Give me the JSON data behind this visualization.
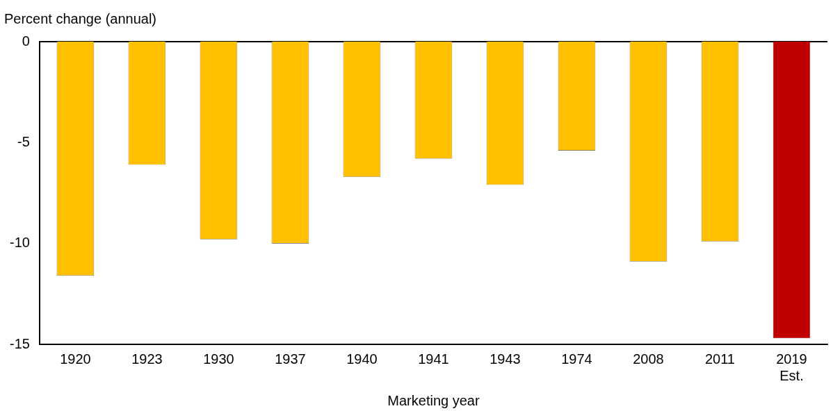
{
  "chart_data": {
    "type": "bar",
    "ylabel": "Percent change (annual)",
    "xlabel": "Marketing year",
    "categories": [
      "1920",
      "1923",
      "1930",
      "1937",
      "1940",
      "1941",
      "1943",
      "1974",
      "2008",
      "2011",
      "2019\nEst."
    ],
    "values": [
      -11.6,
      -6.1,
      -9.8,
      -10.0,
      -6.7,
      -5.8,
      -7.1,
      -5.4,
      -10.9,
      -9.9,
      -14.7
    ],
    "colors": [
      "#ffc000",
      "#ffc000",
      "#ffc000",
      "#ffc000",
      "#ffc000",
      "#ffc000",
      "#ffc000",
      "#ffc000",
      "#ffc000",
      "#ffc000",
      "#c00000"
    ],
    "ylim": [
      -15,
      0
    ],
    "yticks": [
      -15,
      -10,
      -5,
      0
    ],
    "grid": false,
    "legend": false
  }
}
